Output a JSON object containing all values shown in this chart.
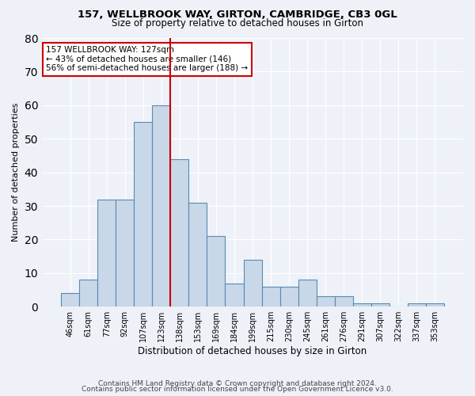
{
  "title1": "157, WELLBROOK WAY, GIRTON, CAMBRIDGE, CB3 0GL",
  "title2": "Size of property relative to detached houses in Girton",
  "xlabel": "Distribution of detached houses by size in Girton",
  "ylabel": "Number of detached properties",
  "bin_labels": [
    "46sqm",
    "61sqm",
    "77sqm",
    "92sqm",
    "107sqm",
    "123sqm",
    "138sqm",
    "153sqm",
    "169sqm",
    "184sqm",
    "199sqm",
    "215sqm",
    "230sqm",
    "245sqm",
    "261sqm",
    "276sqm",
    "291sqm",
    "307sqm",
    "322sqm",
    "337sqm",
    "353sqm"
  ],
  "bar_heights": [
    4,
    8,
    32,
    32,
    55,
    60,
    44,
    31,
    21,
    7,
    14,
    6,
    6,
    8,
    3,
    3,
    1,
    1,
    0,
    1,
    1
  ],
  "bar_color": "#c8d8e8",
  "bar_edge_color": "#5a8ab0",
  "vline_x": 5.5,
  "vline_color": "#cc0000",
  "annotation_text": "157 WELLBROOK WAY: 127sqm\n← 43% of detached houses are smaller (146)\n56% of semi-detached houses are larger (188) →",
  "annotation_box_color": "#cc0000",
  "ylim": [
    0,
    80
  ],
  "yticks": [
    0,
    10,
    20,
    30,
    40,
    50,
    60,
    70,
    80
  ],
  "footer1": "Contains HM Land Registry data © Crown copyright and database right 2024.",
  "footer2": "Contains public sector information licensed under the Open Government Licence v3.0.",
  "bg_color": "#eef2f8",
  "plot_bg_color": "#eef2f8"
}
